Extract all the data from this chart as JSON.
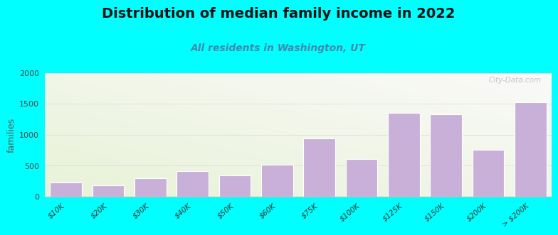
{
  "title": "Distribution of median family income in 2022",
  "subtitle": "All residents in Washington, UT",
  "title_fontsize": 14,
  "subtitle_fontsize": 10,
  "ylabel": "families",
  "categories": [
    "$10K",
    "$20K",
    "$30K",
    "$40K",
    "$50K",
    "$60K",
    "$75K",
    "$100K",
    "$125K",
    "$150K",
    "$200K",
    "> $200K"
  ],
  "values": [
    220,
    175,
    290,
    415,
    345,
    510,
    940,
    600,
    1355,
    1330,
    755,
    1520
  ],
  "bar_color": "#c9b0d8",
  "bar_edge_color": "#ffffff",
  "ylim": [
    0,
    2000
  ],
  "yticks": [
    0,
    500,
    1000,
    1500,
    2000
  ],
  "background_color": "#00ffff",
  "plot_bg_color_topleft": "#f5f8ee",
  "plot_bg_color_topright": "#f8f8f5",
  "plot_bg_color_bottomleft": "#e8f0d8",
  "plot_bg_color_bottomright": "#f5f5f0",
  "grid_color": "#e0e0e0",
  "watermark": "City-Data.com",
  "subtitle_color": "#4488aa",
  "ylabel_color": "#555555",
  "title_color": "#111111"
}
